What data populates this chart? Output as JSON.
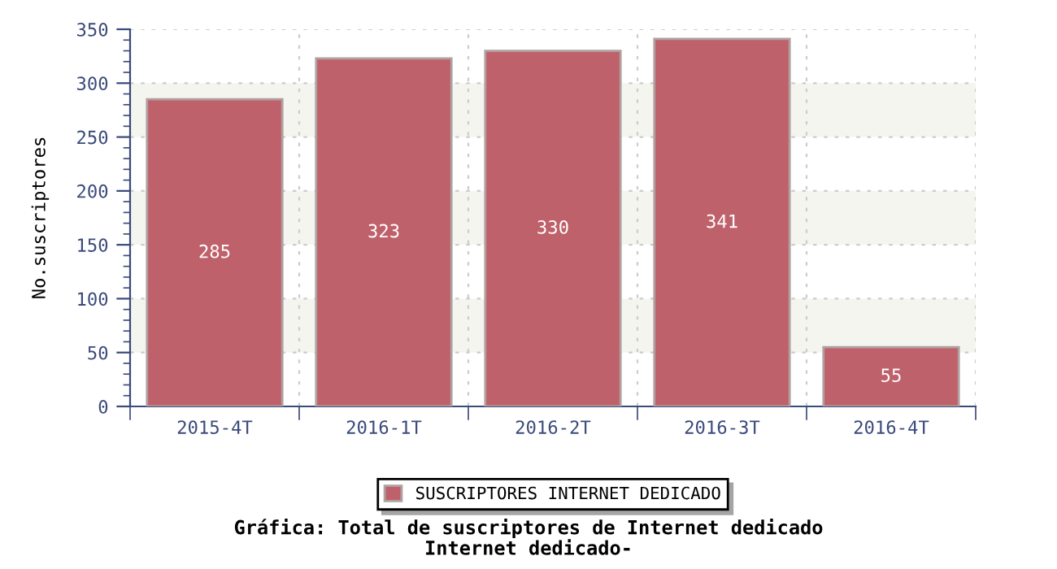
{
  "chart_data": {
    "type": "bar",
    "title": "Gráfica: Total de suscriptores de Internet dedicado",
    "subtitle": "Internet dedicado-",
    "ylabel": "No.suscriptores",
    "categories": [
      "2015-4T",
      "2016-1T",
      "2016-2T",
      "2016-3T",
      "2016-4T"
    ],
    "series": [
      {
        "name": "SUSCRIPTORES INTERNET DEDICADO",
        "color": "#bf616a",
        "values": [
          285,
          323,
          330,
          341,
          55
        ]
      }
    ],
    "data_labels": true,
    "ylim": [
      0,
      350
    ],
    "yticks": [
      0,
      50,
      100,
      150,
      200,
      250,
      300,
      350
    ],
    "grid": true,
    "legend": "bottom",
    "bands": [
      {
        "axis": "y",
        "from": 50,
        "to": 100,
        "color": "#f5f5f0"
      },
      {
        "axis": "y",
        "from": 150,
        "to": 200,
        "color": "#f5f5f0"
      },
      {
        "axis": "y",
        "from": 250,
        "to": 300,
        "color": "#f5f5f0"
      }
    ]
  }
}
